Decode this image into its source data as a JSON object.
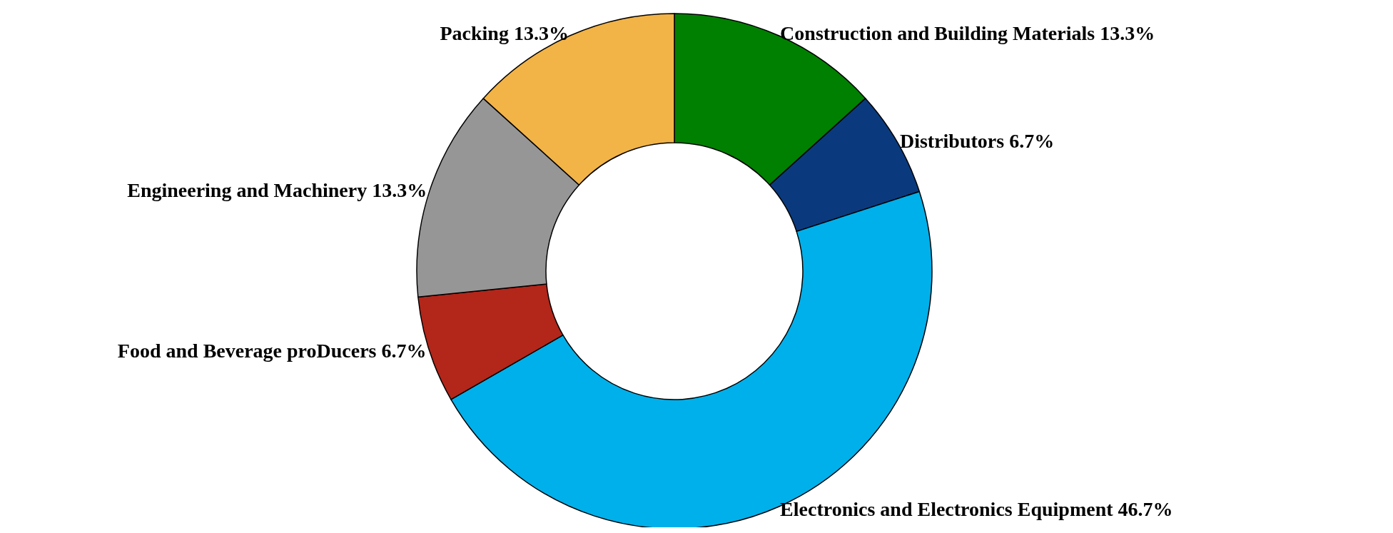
{
  "chart_data": {
    "type": "donut",
    "categories": [
      "Construction and Building Materials",
      "Distributors",
      "Electronics and Electronics Equipment",
      "Food and Beverage proDucers",
      "Engineering and Machinery",
      "Packing"
    ],
    "values": [
      13.3,
      6.7,
      46.7,
      6.7,
      13.3,
      13.3
    ],
    "colors": [
      "#008000",
      "#0a3a7d",
      "#00b0ea",
      "#b3261a",
      "#969696",
      "#f2b347"
    ],
    "value_labels": [
      "13.3%",
      "6.7%",
      "46.7%",
      "6.7%",
      "13.3%",
      "13.3%"
    ]
  }
}
